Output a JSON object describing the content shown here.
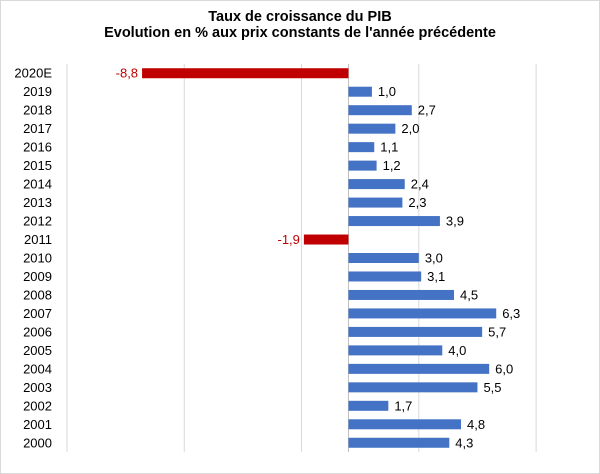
{
  "chart_data": {
    "type": "bar",
    "orientation": "horizontal",
    "title": "Taux de croissance du PIB",
    "subtitle": "Evolution en % aux prix constants de l'année précédente",
    "xlabel": "",
    "ylabel": "",
    "categories": [
      "2020E",
      "2019",
      "2018",
      "2017",
      "2016",
      "2015",
      "2014",
      "2013",
      "2012",
      "2011",
      "2010",
      "2009",
      "2008",
      "2007",
      "2006",
      "2005",
      "2004",
      "2003",
      "2002",
      "2001",
      "2000"
    ],
    "values": [
      -8.8,
      1.0,
      2.7,
      2.0,
      1.1,
      1.2,
      2.4,
      2.3,
      3.9,
      -1.9,
      3.0,
      3.1,
      4.5,
      6.3,
      5.7,
      4.0,
      6.0,
      5.5,
      1.7,
      4.8,
      4.3
    ],
    "data_labels": [
      "-8,8",
      "1,0",
      "2,7",
      "2,0",
      "1,1",
      "1,2",
      "2,4",
      "2,3",
      "3,9",
      "-1,9",
      "3,0",
      "3,1",
      "4,5",
      "6,3",
      "5,7",
      "4,0",
      "6,0",
      "5,5",
      "1,7",
      "4,8",
      "4,3"
    ],
    "xlim": [
      -12,
      10
    ],
    "grid": true,
    "legend": "none",
    "colors": {
      "positive": "#4472C4",
      "negative": "#C00000",
      "grid": "#d9d9d9",
      "neg_label": "#C00000",
      "pos_label": "#000000"
    }
  }
}
